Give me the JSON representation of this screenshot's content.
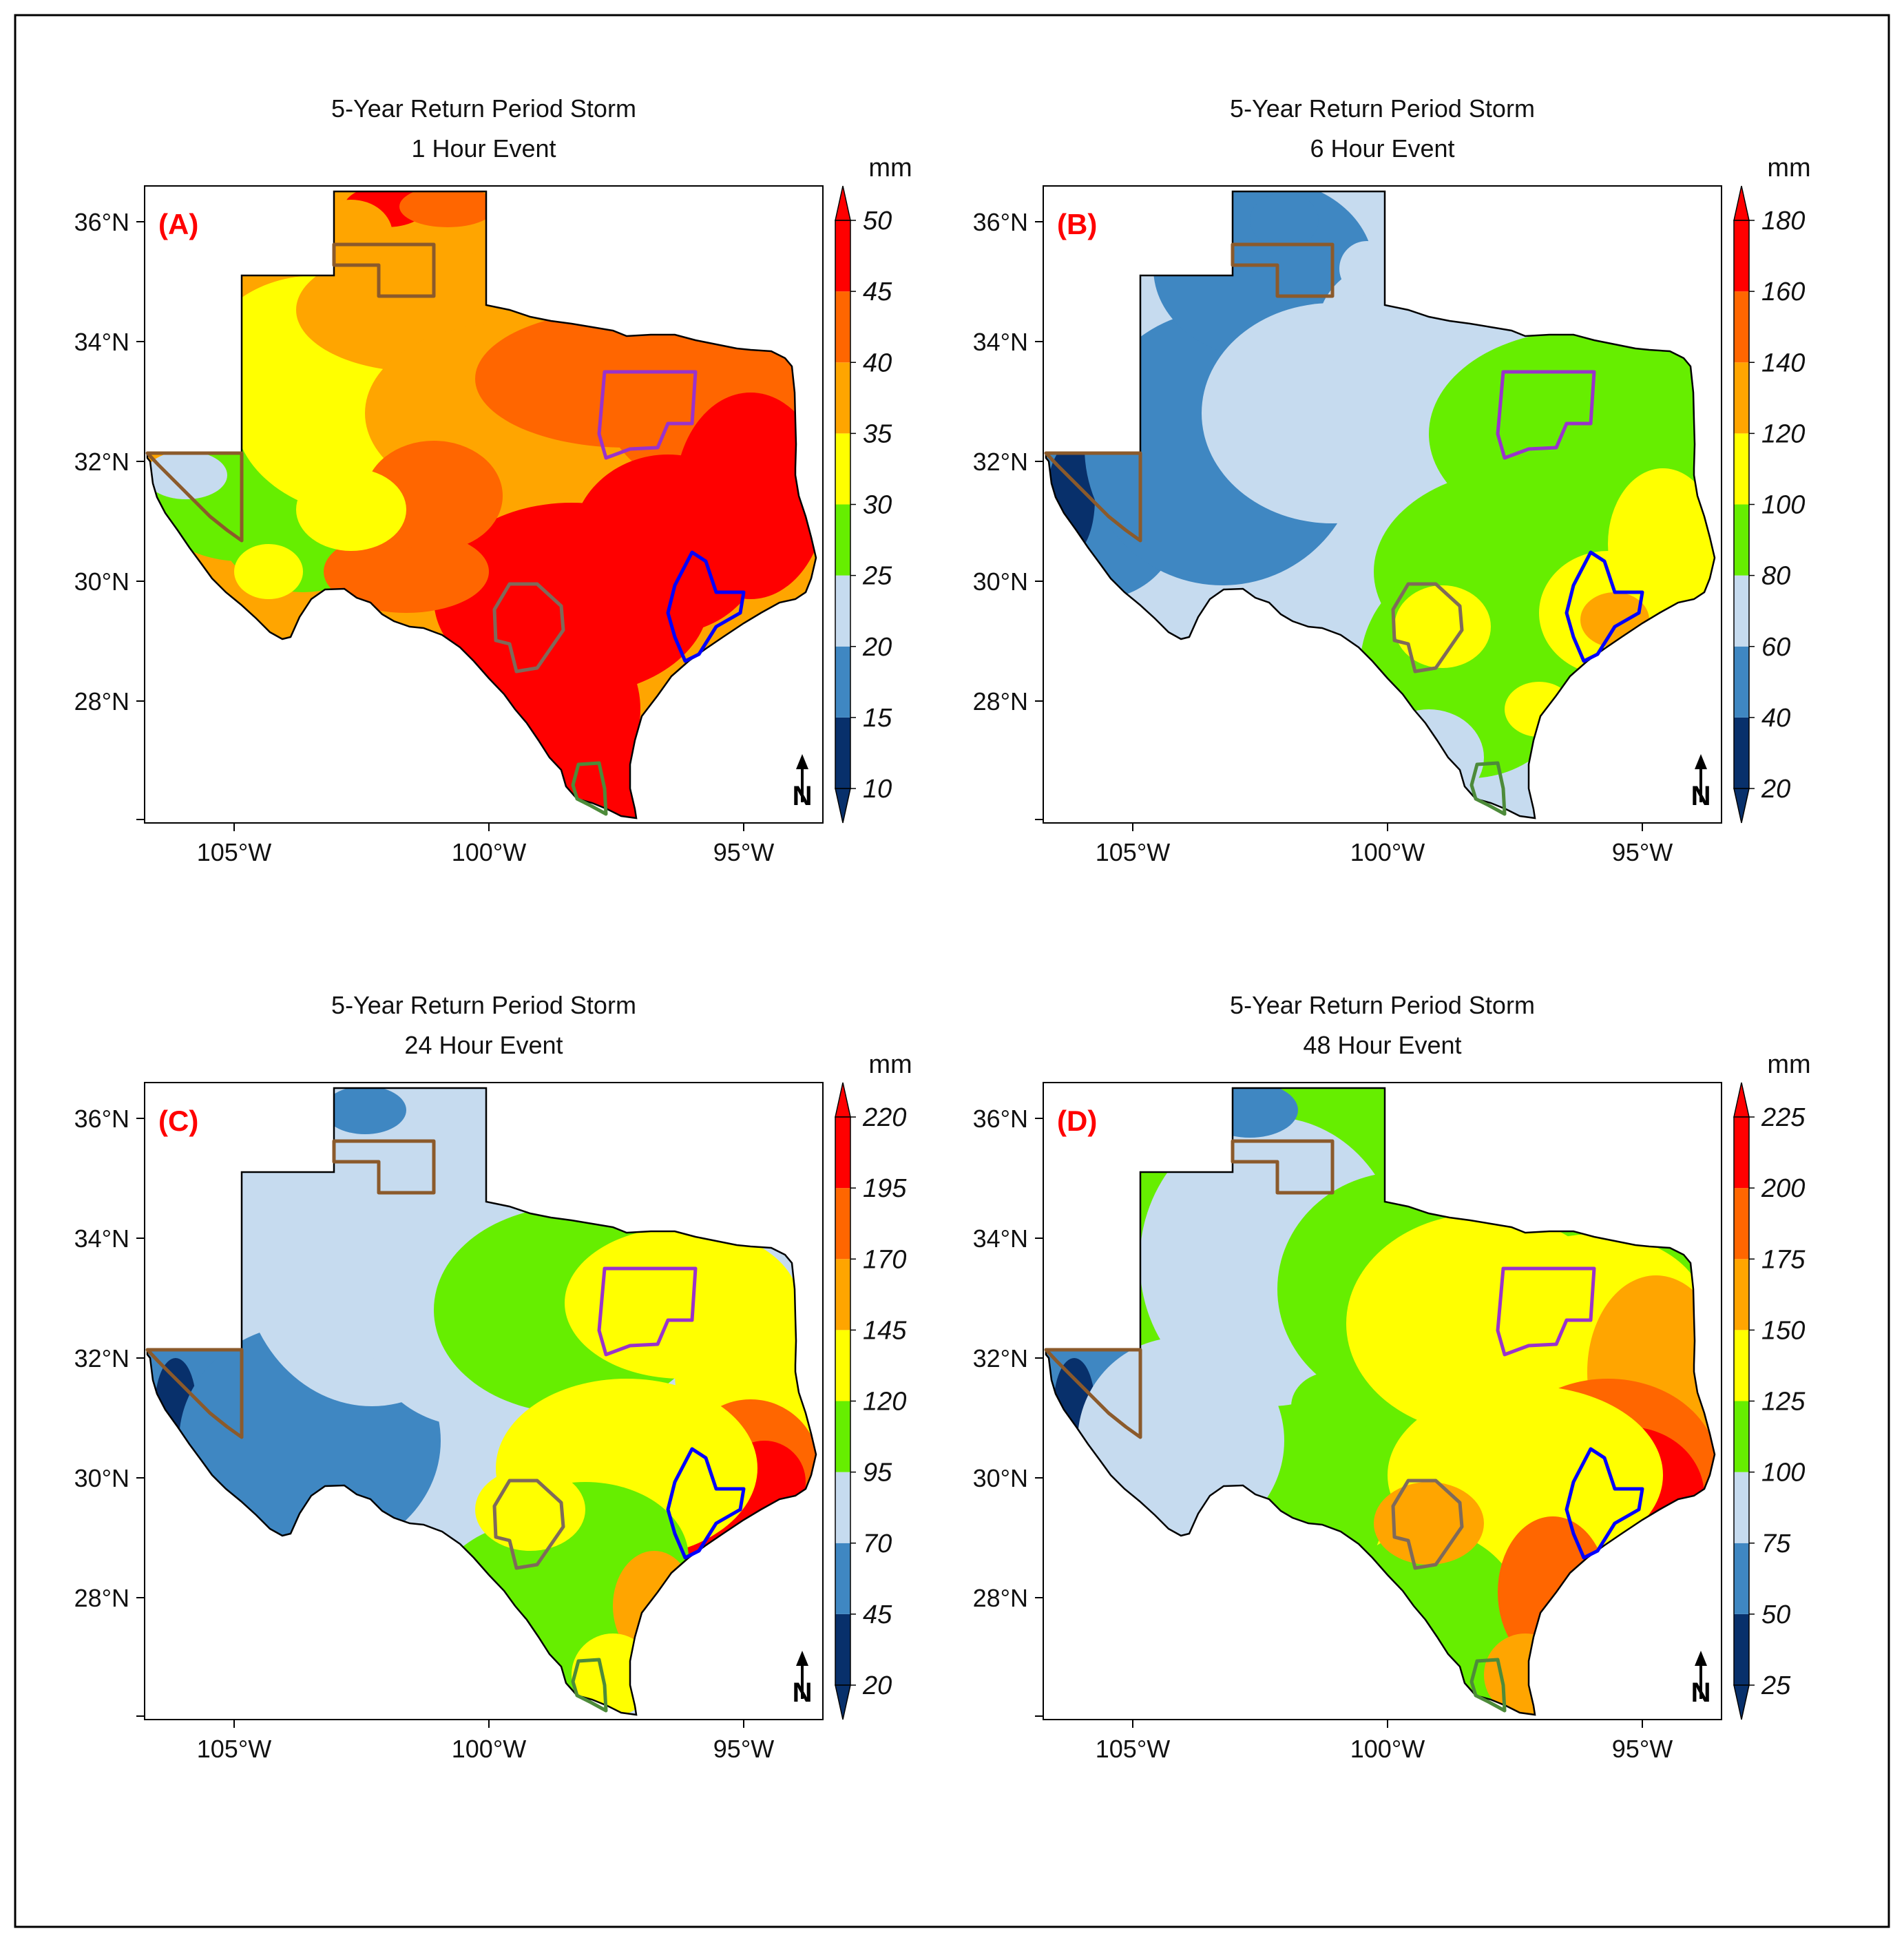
{
  "figure": {
    "panels": [
      {
        "id": "A",
        "label": "(A)",
        "title_line1": "5-Year Return Period Storm",
        "title_line2": "1 Hour Event",
        "unit": "mm",
        "legend_ticks": [
          "10",
          "15",
          "20",
          "25",
          "30",
          "35",
          "40",
          "45",
          "50"
        ],
        "x_ticks": [
          "105°W",
          "100°W",
          "95°W"
        ],
        "y_ticks": [
          "36°N",
          "34°N",
          "32°N",
          "30°N",
          "28°N"
        ],
        "north_label": "N"
      },
      {
        "id": "B",
        "label": "(B)",
        "title_line1": "5-Year Return Period Storm",
        "title_line2": "6 Hour Event",
        "unit": "mm",
        "legend_ticks": [
          "20",
          "40",
          "60",
          "80",
          "100",
          "120",
          "140",
          "160",
          "180"
        ],
        "x_ticks": [
          "105°W",
          "100°W",
          "95°W"
        ],
        "y_ticks": [
          "36°N",
          "34°N",
          "32°N",
          "30°N",
          "28°N"
        ],
        "north_label": "N"
      },
      {
        "id": "C",
        "label": "(C)",
        "title_line1": "5-Year Return Period Storm",
        "title_line2": "24 Hour Event",
        "unit": "mm",
        "legend_ticks": [
          "20",
          "45",
          "70",
          "95",
          "120",
          "145",
          "170",
          "195",
          "220"
        ],
        "x_ticks": [
          "105°W",
          "100°W",
          "95°W"
        ],
        "y_ticks": [
          "36°N",
          "34°N",
          "32°N",
          "30°N",
          "28°N"
        ],
        "north_label": "N"
      },
      {
        "id": "D",
        "label": "(D)",
        "title_line1": "5-Year Return Period Storm",
        "title_line2": "48 Hour Event",
        "unit": "mm",
        "legend_ticks": [
          "25",
          "50",
          "75",
          "100",
          "125",
          "150",
          "175",
          "200",
          "225"
        ],
        "x_ticks": [
          "105°W",
          "100°W",
          "95°W"
        ],
        "y_ticks": [
          "36°N",
          "34°N",
          "32°N",
          "30°N",
          "28°N"
        ],
        "north_label": "N"
      }
    ],
    "colors": {
      "scale": [
        "#08306b",
        "#3f87c2",
        "#c6dbef",
        "#66ee00",
        "#ffff00",
        "#ffa500",
        "#ff6600",
        "#ff0000"
      ],
      "label_red": "#ff0000",
      "outline_brown": "#8b5a2b",
      "outline_purple": "#9932cc",
      "outline_blue": "#0000ff",
      "outline_green": "#4d8b3a",
      "outline_gray": "#7f6a5a"
    }
  }
}
